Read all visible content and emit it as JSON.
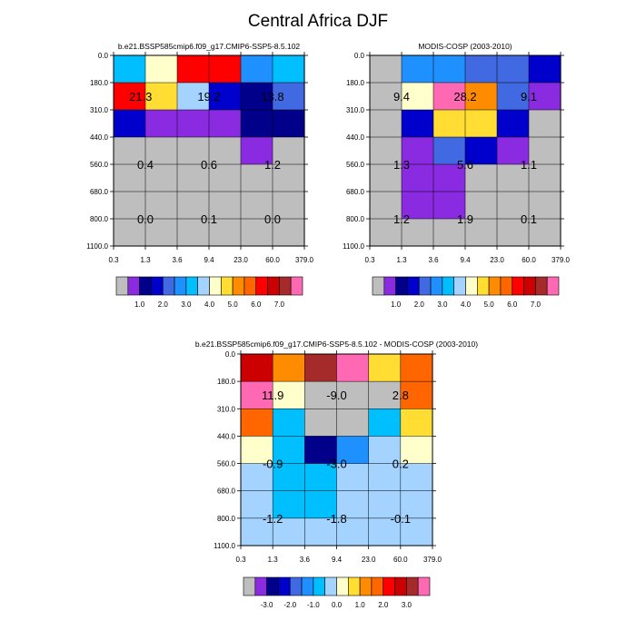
{
  "page_title": "Central Africa DJF",
  "colors": {
    "gray": "#bebebe",
    "violet": "#8a2be2",
    "navy": "#00008b",
    "blue": "#0000cd",
    "royal": "#4169e1",
    "dodger": "#1e90ff",
    "sky": "#00bfff",
    "lightblue": "#a4d3ff",
    "cream": "#ffffcc",
    "gold": "#ffdd33",
    "orange": "#ff8c00",
    "darkorange": "#ff6600",
    "red": "#ff0000",
    "darkred": "#cc0000",
    "brown": "#a52a2a",
    "pink": "#ff69b4"
  },
  "chart_data": [
    {
      "type": "heatmap",
      "title": "b.e21.BSSP585cmip6.f09_g17.CMIP6-SSP5-8.5.102",
      "x_ticks": [
        "0.3",
        "1.3",
        "3.6",
        "9.4",
        "23.0",
        "60.0",
        "379.0"
      ],
      "y_ticks": [
        "0.0",
        "180.0",
        "310.0",
        "440.0",
        "560.0",
        "680.0",
        "800.0",
        "1100.0"
      ],
      "cells": [
        [
          "sky",
          "cream",
          "red",
          "red",
          "dodger",
          "sky"
        ],
        [
          "red",
          "gold",
          "lightblue",
          "blue",
          "navy",
          "royal"
        ],
        [
          "blue",
          "violet",
          "violet",
          "violet",
          "navy",
          "navy"
        ],
        [
          "gray",
          "gray",
          "gray",
          "gray",
          "violet",
          "gray"
        ],
        [
          "gray",
          "gray",
          "gray",
          "gray",
          "gray",
          "gray"
        ],
        [
          "gray",
          "gray",
          "gray",
          "gray",
          "gray",
          "gray"
        ],
        [
          "gray",
          "gray",
          "gray",
          "gray",
          "gray",
          "gray"
        ]
      ],
      "labels": [
        {
          "text": "21.3",
          "col": 0.85,
          "row": 1.5
        },
        {
          "text": "19.2",
          "col": 3.0,
          "row": 1.5
        },
        {
          "text": "13.8",
          "col": 5.0,
          "row": 1.5
        },
        {
          "text": "0.4",
          "col": 1.0,
          "row": 4.0
        },
        {
          "text": "0.6",
          "col": 3.0,
          "row": 4.0
        },
        {
          "text": "1.2",
          "col": 5.0,
          "row": 4.0
        },
        {
          "text": "0.0",
          "col": 1.0,
          "row": 6.0
        },
        {
          "text": "0.1",
          "col": 3.0,
          "row": 6.0
        },
        {
          "text": "0.0",
          "col": 5.0,
          "row": 6.0
        }
      ],
      "colorbar": {
        "colors": [
          "gray",
          "violet",
          "navy",
          "blue",
          "royal",
          "dodger",
          "sky",
          "lightblue",
          "cream",
          "gold",
          "orange",
          "darkorange",
          "red",
          "darkred",
          "brown",
          "pink"
        ],
        "labels": [
          "1.0",
          "2.0",
          "3.0",
          "4.0",
          "5.0",
          "6.0",
          "7.0"
        ],
        "label_boundaries": [
          2,
          4,
          6,
          8,
          10,
          12,
          14
        ]
      }
    },
    {
      "type": "heatmap",
      "title": "MODIS-COSP (2003-2010)",
      "x_ticks": [
        "0.3",
        "1.3",
        "3.6",
        "9.4",
        "23.0",
        "60.0",
        "379.0"
      ],
      "y_ticks": [
        "0.0",
        "180.0",
        "310.0",
        "440.0",
        "560.0",
        "680.0",
        "800.0",
        "1100.0"
      ],
      "cells": [
        [
          "gray",
          "dodger",
          "dodger",
          "royal",
          "royal",
          "blue"
        ],
        [
          "gray",
          "cream",
          "pink",
          "orange",
          "royal",
          "violet"
        ],
        [
          "gray",
          "blue",
          "gold",
          "gold",
          "blue",
          "gray"
        ],
        [
          "gray",
          "violet",
          "royal",
          "blue",
          "violet",
          "gray"
        ],
        [
          "gray",
          "violet",
          "violet",
          "gray",
          "gray",
          "gray"
        ],
        [
          "gray",
          "violet",
          "violet",
          "gray",
          "gray",
          "gray"
        ],
        [
          "gray",
          "gray",
          "gray",
          "gray",
          "gray",
          "gray"
        ]
      ],
      "labels": [
        {
          "text": "9.4",
          "col": 1.0,
          "row": 1.5
        },
        {
          "text": "28.2",
          "col": 3.0,
          "row": 1.5
        },
        {
          "text": "9.1",
          "col": 5.0,
          "row": 1.5
        },
        {
          "text": "1.3",
          "col": 1.0,
          "row": 4.0
        },
        {
          "text": "5.6",
          "col": 3.0,
          "row": 4.0
        },
        {
          "text": "1.1",
          "col": 5.0,
          "row": 4.0
        },
        {
          "text": "1.2",
          "col": 1.0,
          "row": 6.0
        },
        {
          "text": "1.9",
          "col": 3.0,
          "row": 6.0
        },
        {
          "text": "0.1",
          "col": 5.0,
          "row": 6.0
        }
      ],
      "colorbar": {
        "colors": [
          "gray",
          "violet",
          "navy",
          "blue",
          "royal",
          "dodger",
          "sky",
          "lightblue",
          "cream",
          "gold",
          "orange",
          "darkorange",
          "red",
          "darkred",
          "brown",
          "pink"
        ],
        "labels": [
          "1.0",
          "2.0",
          "3.0",
          "4.0",
          "5.0",
          "6.0",
          "7.0"
        ],
        "label_boundaries": [
          2,
          4,
          6,
          8,
          10,
          12,
          14
        ]
      }
    },
    {
      "type": "heatmap",
      "title": "b.e21.BSSP585cmip6.f09_g17.CMIP6-SSP5-8.5.102 - MODIS-COSP (2003-2010)",
      "x_ticks": [
        "0.3",
        "1.3",
        "3.6",
        "9.4",
        "23.0",
        "60.0",
        "379.0"
      ],
      "y_ticks": [
        "0.0",
        "180.0",
        "310.0",
        "440.0",
        "560.0",
        "680.0",
        "800.0",
        "1100.0"
      ],
      "cells": [
        [
          "darkred",
          "orange",
          "brown",
          "pink",
          "gold",
          "darkorange"
        ],
        [
          "pink",
          "cream",
          "gray",
          "gray",
          "gray",
          "darkorange"
        ],
        [
          "darkorange",
          "sky",
          "gray",
          "gray",
          "sky",
          "gold"
        ],
        [
          "cream",
          "sky",
          "navy",
          "dodger",
          "lightblue",
          "cream"
        ],
        [
          "lightblue",
          "sky",
          "sky",
          "lightblue",
          "lightblue",
          "lightblue"
        ],
        [
          "lightblue",
          "sky",
          "sky",
          "lightblue",
          "lightblue",
          "lightblue"
        ],
        [
          "lightblue",
          "lightblue",
          "lightblue",
          "lightblue",
          "lightblue",
          "lightblue"
        ]
      ],
      "labels": [
        {
          "text": "11.9",
          "col": 1.0,
          "row": 1.5
        },
        {
          "text": "-9.0",
          "col": 3.0,
          "row": 1.5
        },
        {
          "text": "2.8",
          "col": 5.0,
          "row": 1.5
        },
        {
          "text": "-0.9",
          "col": 1.0,
          "row": 4.0
        },
        {
          "text": "-3.0",
          "col": 3.0,
          "row": 4.0
        },
        {
          "text": "0.2",
          "col": 5.0,
          "row": 4.0
        },
        {
          "text": "-1.2",
          "col": 1.0,
          "row": 6.0
        },
        {
          "text": "-1.8",
          "col": 3.0,
          "row": 6.0
        },
        {
          "text": "-0.1",
          "col": 5.0,
          "row": 6.0
        }
      ],
      "colorbar": {
        "colors": [
          "gray",
          "violet",
          "navy",
          "blue",
          "royal",
          "dodger",
          "sky",
          "lightblue",
          "cream",
          "gold",
          "orange",
          "darkorange",
          "red",
          "darkred",
          "brown",
          "pink"
        ],
        "labels": [
          "-3.0",
          "-2.0",
          "-1.0",
          "0.0",
          "1.0",
          "2.0",
          "3.0"
        ],
        "label_boundaries": [
          2,
          4,
          6,
          8,
          10,
          12,
          14
        ]
      }
    }
  ]
}
